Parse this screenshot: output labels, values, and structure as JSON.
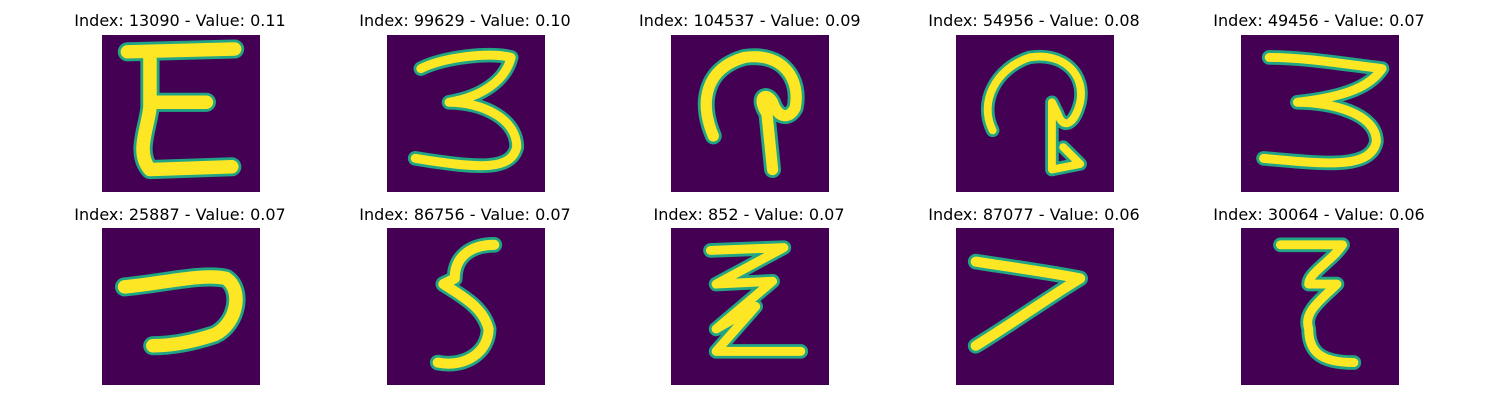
{
  "images": [
    {
      "title": "Index: 13090 - Value: 0.11",
      "glyph": "E-shape",
      "colors": {
        "background": "#440154",
        "stroke": "#fde725",
        "edge": "#21a585"
      }
    },
    {
      "title": "Index: 99629 - Value: 0.10",
      "glyph": "3-shape"
    },
    {
      "title": "Index: 104537 - Value: 0.09",
      "glyph": "hook-shape"
    },
    {
      "title": "Index: 54956 - Value: 0.08",
      "glyph": "loop-shape"
    },
    {
      "title": "Index: 49456 - Value: 0.07",
      "glyph": "3-shape-wide"
    },
    {
      "title": "Index: 25887 - Value: 0.07",
      "glyph": "7-shape"
    },
    {
      "title": "Index: 86756 - Value: 0.07",
      "glyph": "5-shape"
    },
    {
      "title": "Index: 852 - Value: 0.07",
      "glyph": "Z-shape"
    },
    {
      "title": "Index: 87077 - Value: 0.06",
      "glyph": "7-shape-slanted"
    },
    {
      "title": "Index: 30064 - Value: 0.06",
      "glyph": "E-shape-narrow"
    }
  ]
}
